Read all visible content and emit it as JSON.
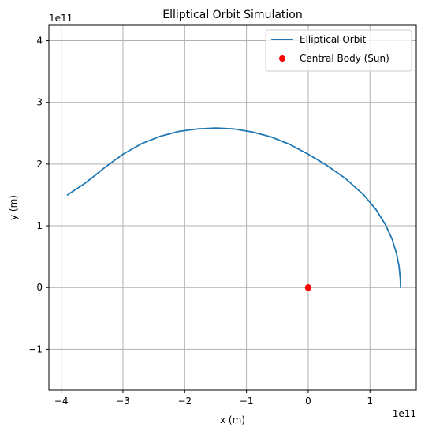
{
  "chart_data": {
    "type": "line",
    "title": "Elliptical Orbit Simulation",
    "xlabel": "x (m)",
    "ylabel": "y (m)",
    "x_offset_label": "1e11",
    "y_offset_label": "1e11",
    "xlim": [
      -420000000000.0,
      175000000000.0
    ],
    "ylim": [
      -166000000000.0,
      425000000000.0
    ],
    "x_ticks": [
      {
        "value": -400000000000.0,
        "label": "−4"
      },
      {
        "value": -300000000000.0,
        "label": "−3"
      },
      {
        "value": -200000000000.0,
        "label": "−2"
      },
      {
        "value": -100000000000.0,
        "label": "−1"
      },
      {
        "value": 0,
        "label": "0"
      },
      {
        "value": 100000000000.0,
        "label": "1"
      }
    ],
    "y_ticks": [
      {
        "value": -100000000000.0,
        "label": "−1"
      },
      {
        "value": 0,
        "label": "0"
      },
      {
        "value": 100000000000.0,
        "label": "1"
      },
      {
        "value": 200000000000.0,
        "label": "2"
      },
      {
        "value": 300000000000.0,
        "label": "3"
      },
      {
        "value": 400000000000.0,
        "label": "4"
      }
    ],
    "grid": true,
    "legend_position": "top-right",
    "series": [
      {
        "name": "Elliptical Orbit",
        "kind": "line",
        "color": "#1f77b4",
        "points": [
          [
            149600000000.0,
            0.0
          ],
          [
            149000000000.0,
            15000000000.0
          ],
          [
            147000000000.0,
            35000000000.0
          ],
          [
            143000000000.0,
            55000000000.0
          ],
          [
            136000000000.0,
            78000000000.0
          ],
          [
            125000000000.0,
            102000000000.0
          ],
          [
            110000000000.0,
            126000000000.0
          ],
          [
            90000000000.0,
            150000000000.0
          ],
          [
            60000000000.0,
            177000000000.0
          ],
          [
            30000000000.0,
            198000000000.0
          ],
          [
            0.0,
            216000000000.0
          ],
          [
            -30000000000.0,
            232000000000.0
          ],
          [
            -60000000000.0,
            244000000000.0
          ],
          [
            -90000000000.0,
            252000000000.0
          ],
          [
            -120000000000.0,
            257000000000.0
          ],
          [
            -150000000000.0,
            258500000000.0
          ],
          [
            -180000000000.0,
            257000000000.0
          ],
          [
            -210000000000.0,
            253000000000.0
          ],
          [
            -240000000000.0,
            245000000000.0
          ],
          [
            -270000000000.0,
            233000000000.0
          ],
          [
            -300000000000.0,
            216000000000.0
          ],
          [
            -330000000000.0,
            194000000000.0
          ],
          [
            -360000000000.0,
            170000000000.0
          ],
          [
            -390000000000.0,
            150000000000.0
          ]
        ]
      },
      {
        "name": "Central Body (Sun)",
        "kind": "scatter",
        "color": "#ff0000",
        "points": [
          [
            0,
            0
          ]
        ]
      }
    ]
  }
}
